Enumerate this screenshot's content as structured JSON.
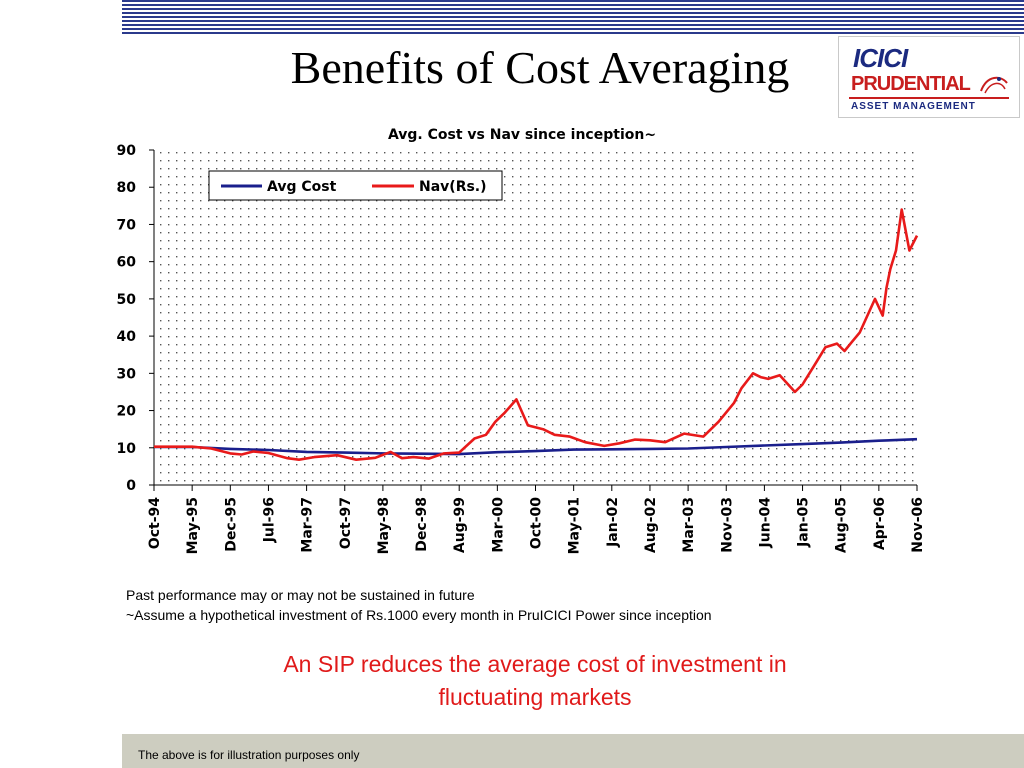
{
  "slide": {
    "title": "Benefits of Cost Averaging",
    "footnote_1": "Past performance may or may not be sustained in future",
    "footnote_2": "~Assume a hypothetical investment of Rs.1000 every month in PruICICI Power since inception",
    "message": "An SIP reduces the average cost of investment in fluctuating markets",
    "disclaimer": "The above is for illustration purposes only"
  },
  "logo": {
    "line1": "ICICI",
    "line2": "PRUDENTIAL",
    "line3": "ASSET MANAGEMENT",
    "colors": {
      "blue": "#1b2a80",
      "red": "#c81e1e"
    }
  },
  "chart_data": {
    "type": "line",
    "title": "Avg. Cost vs Nav since inception~",
    "xlabel": "",
    "ylabel": "",
    "ylim": [
      0,
      90
    ],
    "yticks": [
      0,
      10,
      20,
      30,
      40,
      50,
      60,
      70,
      80,
      90
    ],
    "categories": [
      "Oct-94",
      "May-95",
      "Dec-95",
      "Jul-96",
      "Mar-97",
      "Oct-97",
      "May-98",
      "Dec-98",
      "Aug-99",
      "Mar-00",
      "Oct-00",
      "May-01",
      "Jan-02",
      "Aug-02",
      "Mar-03",
      "Nov-03",
      "Jun-04",
      "Jan-05",
      "Aug-05",
      "Apr-06",
      "Nov-06"
    ],
    "grid": "dotted",
    "legend_position": "top-left",
    "series": [
      {
        "name": "Avg Cost",
        "color": "#1a1f8c",
        "x": [
          0,
          1,
          2,
          3,
          4,
          5,
          6,
          7,
          8,
          9,
          10,
          11,
          12,
          13,
          14,
          15,
          16,
          17,
          18,
          19,
          20
        ],
        "values": [
          10.2,
          10.2,
          9.7,
          9.4,
          8.9,
          8.7,
          8.5,
          8.4,
          8.3,
          8.8,
          9.1,
          9.5,
          9.6,
          9.7,
          9.8,
          10.2,
          10.6,
          11.0,
          11.4,
          11.9,
          12.3
        ]
      },
      {
        "name": "Nav(Rs.)",
        "color": "#e81a1a",
        "x": [
          0,
          1,
          1.5,
          2,
          2.3,
          2.6,
          3,
          3.5,
          3.8,
          4.2,
          4.8,
          5.3,
          5.8,
          6.2,
          6.5,
          6.8,
          7.2,
          7.6,
          8.0,
          8.4,
          8.7,
          8.95,
          9.2,
          9.5,
          9.8,
          10.2,
          10.5,
          10.9,
          11.3,
          11.8,
          12.2,
          12.6,
          13.0,
          13.4,
          13.9,
          14.4,
          14.8,
          15.2,
          15.4,
          15.7,
          15.9,
          16.1,
          16.4,
          16.8,
          17.0,
          17.3,
          17.6,
          17.9,
          18.1,
          18.3,
          18.5,
          18.9,
          19.1,
          19.2,
          19.3,
          19.45,
          19.6,
          19.8,
          20.0
        ],
        "values": [
          10.3,
          10.3,
          9.8,
          8.5,
          8.2,
          9.0,
          8.6,
          7.2,
          6.8,
          7.5,
          8.0,
          6.8,
          7.3,
          8.9,
          7.2,
          7.5,
          7.1,
          8.5,
          8.7,
          12.5,
          13.5,
          17.0,
          19.5,
          23.0,
          16.0,
          15.0,
          13.5,
          13.0,
          11.5,
          10.5,
          11.2,
          12.2,
          12.0,
          11.5,
          13.8,
          13.0,
          17.0,
          22.0,
          26.0,
          30.0,
          29.0,
          28.5,
          29.5,
          25.0,
          27.0,
          32.0,
          37.0,
          38.0,
          36.0,
          38.5,
          41.0,
          50.0,
          45.5,
          53.0,
          58.0,
          63.0,
          74.0,
          63.0,
          67.0
        ]
      }
    ]
  }
}
